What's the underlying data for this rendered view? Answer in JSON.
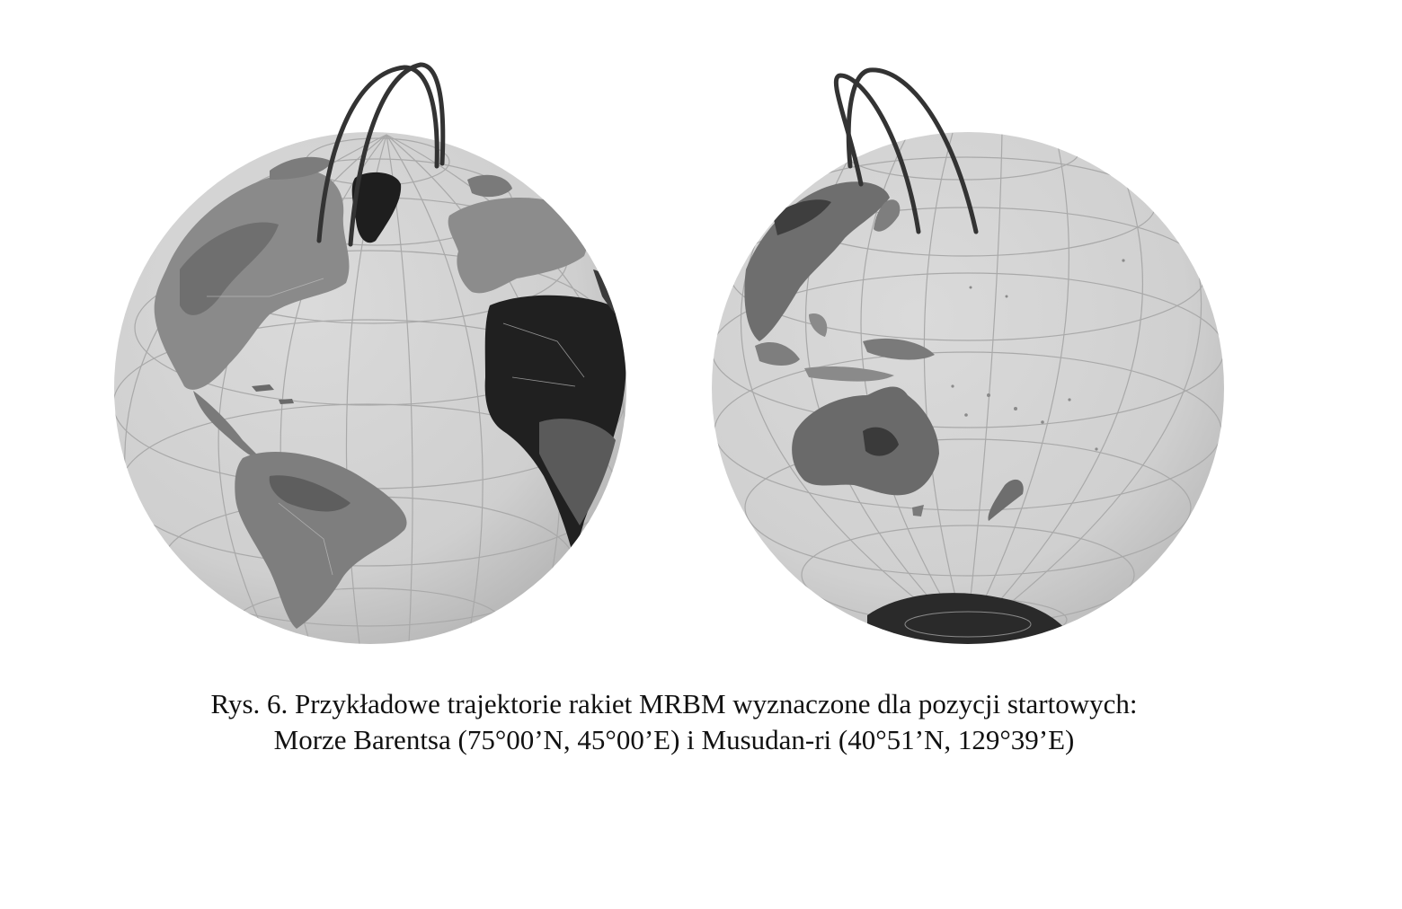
{
  "figure": {
    "caption_line1": "Rys. 6. Przykładowe trajektorie rakiet MRBM wyznaczone dla pozycji startowych:",
    "caption_line2": "Morze Barentsa (75°00’N, 45°00’E) i Musudan-ri (40°51’N, 129°39’E)"
  },
  "colors": {
    "ocean": "#d2d2d2",
    "land_light": "#8f8f8f",
    "land_dark": "#2a2a2a",
    "graticule": "#a9a9a9",
    "trajectory": "#333333"
  },
  "globes": [
    {
      "view": "atlantic",
      "trajectories": 2
    },
    {
      "view": "pacific",
      "trajectories": 2
    }
  ]
}
